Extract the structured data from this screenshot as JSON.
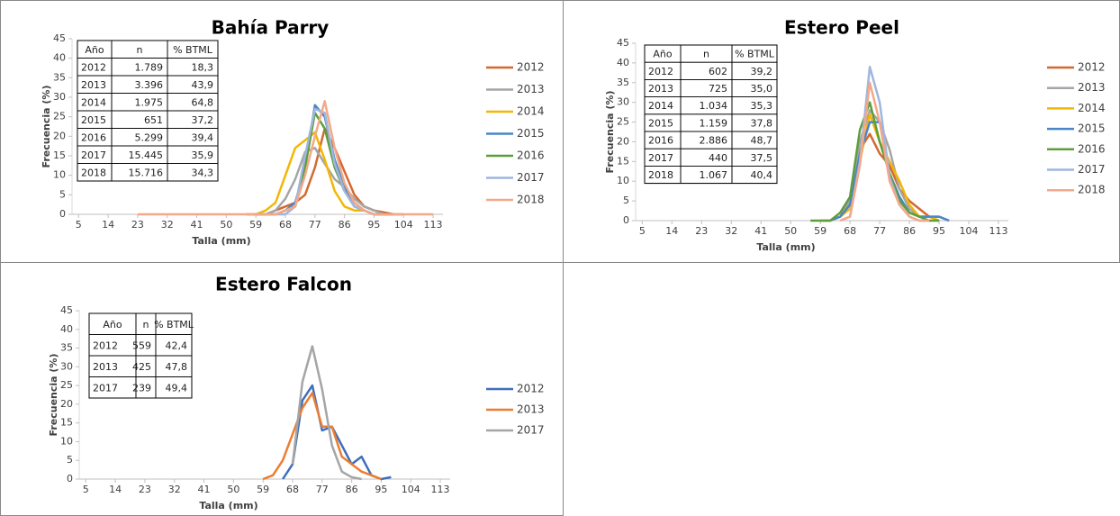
{
  "chart_data": [
    {
      "type": "line",
      "title": "Bahía Parry",
      "x_label": "Talla (mm)",
      "y_label": "Frecuencia (%)",
      "x": [
        23,
        32,
        41,
        50,
        56,
        59,
        62,
        65,
        68,
        71,
        74,
        77,
        80,
        83,
        86,
        89,
        92,
        95,
        98,
        101,
        104,
        110,
        113
      ],
      "xlim": [
        3,
        116
      ],
      "xticks": [
        5,
        14,
        23,
        32,
        41,
        50,
        59,
        68,
        77,
        86,
        95,
        104,
        113
      ],
      "ylim": [
        0,
        45
      ],
      "yticks": [
        0,
        5,
        10,
        15,
        20,
        25,
        30,
        35,
        40,
        45
      ],
      "series": [
        {
          "name": "2012",
          "color": "#d4692e",
          "values": [
            null,
            null,
            null,
            null,
            0,
            0,
            0,
            1,
            2,
            3,
            5,
            12,
            22,
            17,
            11,
            5,
            2,
            1,
            0.5,
            0,
            0,
            null,
            null
          ]
        },
        {
          "name": "2013",
          "color": "#a5a5a5",
          "values": [
            null,
            null,
            null,
            null,
            null,
            0,
            0,
            1,
            4,
            9,
            16,
            17,
            13,
            9,
            7,
            4,
            2,
            1,
            0,
            0,
            null,
            null,
            null
          ]
        },
        {
          "name": "2014",
          "color": "#f2b705",
          "values": [
            null,
            null,
            null,
            null,
            0,
            0,
            1,
            3,
            10,
            17,
            19,
            21,
            14,
            6,
            2,
            1,
            1,
            0,
            0,
            null,
            null,
            null,
            null
          ]
        },
        {
          "name": "2015",
          "color": "#4a86c8",
          "values": [
            null,
            null,
            null,
            null,
            null,
            0,
            0,
            0,
            1,
            3,
            12,
            28,
            25,
            14,
            7,
            3,
            1,
            0,
            0,
            0,
            null,
            null,
            null
          ]
        },
        {
          "name": "2016",
          "color": "#5e9e3a",
          "values": [
            null,
            null,
            null,
            null,
            null,
            0,
            0,
            0,
            1,
            2,
            12,
            26,
            22,
            12,
            6,
            2,
            1,
            0,
            0,
            null,
            null,
            null,
            null
          ]
        },
        {
          "name": "2017",
          "color": "#9fb6de",
          "values": [
            null,
            null,
            null,
            null,
            null,
            0,
            0,
            0,
            0,
            2,
            15,
            27,
            26,
            13,
            6,
            2,
            1,
            0,
            0,
            null,
            null,
            null,
            null
          ]
        },
        {
          "name": "2018",
          "color": "#f4a88a",
          "values": [
            0,
            0,
            0,
            0,
            0,
            0,
            0,
            0,
            1,
            2,
            10,
            20,
            29,
            17,
            8,
            3,
            1,
            0,
            0,
            0,
            0,
            0,
            0
          ]
        }
      ],
      "table": {
        "columns": [
          "Año",
          "n",
          "% BTML"
        ],
        "rows": [
          [
            "2012",
            "1.789",
            "18,3"
          ],
          [
            "2013",
            "3.396",
            "43,9"
          ],
          [
            "2014",
            "1.975",
            "64,8"
          ],
          [
            "2015",
            "651",
            "37,2"
          ],
          [
            "2016",
            "5.299",
            "39,4"
          ],
          [
            "2017",
            "15.445",
            "35,9"
          ],
          [
            "2018",
            "15.716",
            "34,3"
          ]
        ]
      }
    },
    {
      "type": "line",
      "title": "Estero Peel",
      "x_label": "Talla (mm)",
      "y_label": "Frecuencia (%)",
      "x": [
        56,
        59,
        62,
        65,
        68,
        71,
        74,
        77,
        80,
        83,
        86,
        89,
        92,
        95,
        98
      ],
      "xlim": [
        3,
        116
      ],
      "xticks": [
        5,
        14,
        23,
        32,
        41,
        50,
        59,
        68,
        77,
        86,
        95,
        104,
        113
      ],
      "ylim": [
        0,
        45
      ],
      "yticks": [
        0,
        5,
        10,
        15,
        20,
        25,
        30,
        35,
        40,
        45
      ],
      "series": [
        {
          "name": "2012",
          "color": "#d4692e",
          "values": [
            null,
            0,
            0,
            1,
            5,
            18,
            22,
            17,
            14,
            8,
            5,
            3,
            1,
            1,
            0
          ]
        },
        {
          "name": "2013",
          "color": "#a5a5a5",
          "values": [
            null,
            null,
            0,
            1,
            5,
            20,
            28,
            25,
            18,
            8,
            3,
            1,
            1,
            0,
            null
          ]
        },
        {
          "name": "2014",
          "color": "#f2b705",
          "values": [
            null,
            null,
            0,
            1,
            3,
            15,
            27,
            20,
            15,
            10,
            4,
            1,
            1,
            0,
            null
          ]
        },
        {
          "name": "2015",
          "color": "#4a86c8",
          "values": [
            null,
            null,
            0,
            1,
            4,
            17,
            25,
            25,
            12,
            6,
            2,
            1,
            1,
            1,
            0
          ]
        },
        {
          "name": "2016",
          "color": "#5e9e3a",
          "values": [
            0,
            0,
            0,
            2,
            6,
            23,
            30,
            20,
            12,
            5,
            2,
            1,
            0,
            0,
            null
          ]
        },
        {
          "name": "2017",
          "color": "#9fb6de",
          "values": [
            null,
            null,
            null,
            0,
            1,
            15,
            39,
            30,
            11,
            4,
            1,
            0,
            0,
            null,
            null
          ]
        },
        {
          "name": "2018",
          "color": "#f4a88a",
          "values": [
            null,
            null,
            null,
            0,
            1,
            14,
            35,
            25,
            10,
            4,
            1,
            0,
            0,
            null,
            null
          ]
        }
      ],
      "table": {
        "columns": [
          "Año",
          "n",
          "% BTML"
        ],
        "rows": [
          [
            "2012",
            "602",
            "39,2"
          ],
          [
            "2013",
            "725",
            "35,0"
          ],
          [
            "2014",
            "1.034",
            "35,3"
          ],
          [
            "2015",
            "1.159",
            "37,8"
          ],
          [
            "2016",
            "2.886",
            "48,7"
          ],
          [
            "2017",
            "440",
            "37,5"
          ],
          [
            "2018",
            "1.067",
            "40,4"
          ]
        ]
      }
    },
    {
      "type": "line",
      "title": "Estero Falcon",
      "x_label": "Talla (mm)",
      "y_label": "Frecuencia (%)",
      "x": [
        59,
        62,
        65,
        68,
        71,
        74,
        77,
        80,
        83,
        86,
        89,
        92,
        95,
        98
      ],
      "xlim": [
        3,
        116
      ],
      "xticks": [
        5,
        14,
        23,
        32,
        41,
        50,
        59,
        68,
        77,
        86,
        95,
        104,
        113
      ],
      "ylim": [
        0,
        45
      ],
      "yticks": [
        0,
        5,
        10,
        15,
        20,
        25,
        30,
        35,
        40,
        45
      ],
      "series": [
        {
          "name": "2012",
          "color": "#3f6fba",
          "values": [
            null,
            null,
            0,
            4,
            21,
            25,
            13,
            14,
            9,
            4,
            6,
            1,
            0,
            0.5
          ]
        },
        {
          "name": "2013",
          "color": "#ed7d31",
          "values": [
            0,
            1,
            5,
            12,
            19,
            23,
            14,
            14,
            6,
            4,
            2,
            1,
            0,
            null
          ]
        },
        {
          "name": "2017",
          "color": "#a5a5a5",
          "values": [
            null,
            null,
            null,
            4,
            26,
            35.5,
            24,
            9,
            2,
            0.5,
            0,
            null,
            null,
            null
          ]
        }
      ],
      "table": {
        "columns": [
          "Año",
          "n",
          "% BTML"
        ],
        "rows": [
          [
            "2012",
            "559",
            "42,4"
          ],
          [
            "2013",
            "425",
            "47,8"
          ],
          [
            "2017",
            "239",
            "49,4"
          ]
        ]
      }
    }
  ]
}
